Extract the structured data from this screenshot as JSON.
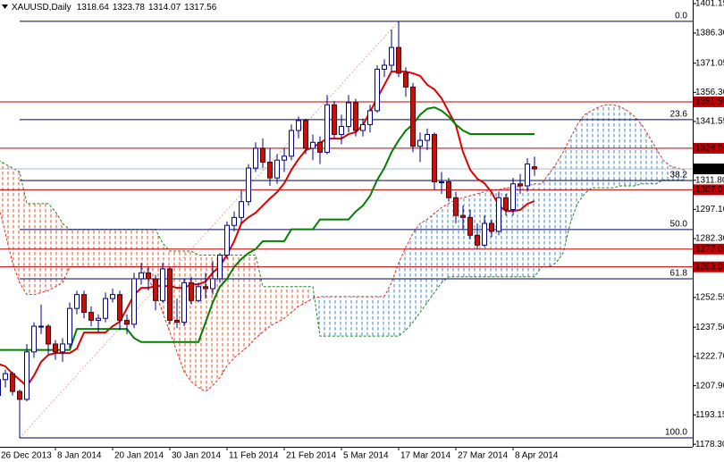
{
  "chart_data": {
    "type": "candlestick",
    "title": "XAUUSD,Daily",
    "categories": [
      "26 Dec 2013",
      null,
      null,
      null,
      null,
      null,
      null,
      null,
      "8 Jan 2014",
      null,
      null,
      null,
      null,
      null,
      null,
      null,
      "20 Jan 2014",
      null,
      null,
      null,
      null,
      null,
      null,
      null,
      "30 Jan 2014",
      null,
      null,
      null,
      null,
      null,
      null,
      null,
      "11 Feb 2014",
      null,
      null,
      null,
      null,
      null,
      null,
      null,
      "21 Feb 2014",
      null,
      null,
      null,
      null,
      null,
      null,
      null,
      "5 Mar 2014",
      null,
      null,
      null,
      null,
      null,
      null,
      null,
      "17 Mar 2014",
      null,
      null,
      null,
      null,
      null,
      null,
      null,
      "27 Mar 2014",
      null,
      null,
      null,
      null,
      null,
      null,
      null,
      "8 Apr 2014",
      null,
      null,
      null,
      null,
      null,
      null,
      null,
      null,
      null,
      null,
      null,
      null,
      null,
      null,
      null,
      null,
      null,
      null,
      null,
      null,
      null,
      null,
      null,
      null
    ],
    "open": [
      1203,
      1211,
      1214,
      1205,
      1201,
      1225,
      1238,
      1238,
      1229,
      1225,
      1229,
      1247,
      1254,
      1245,
      1241,
      1242,
      1252,
      1254,
      1241,
      1239,
      1262,
      1265,
      1262,
      1251,
      1267,
      1241,
      1240,
      1260,
      1251,
      1258,
      1257,
      1262,
      1274,
      1289,
      1293,
      1301,
      1318,
      1328,
      1321,
      1313,
      1322,
      1324,
      1337,
      1342,
      1328,
      1331,
      1326,
      1350,
      1335,
      1339,
      1351,
      1337,
      1340,
      1347,
      1368,
      1370,
      1379,
      1366,
      1359,
      1329,
      1332,
      1335,
      1311,
      1311,
      1303,
      1294,
      1293,
      1284,
      1279,
      1290,
      1286,
      1303,
      1297,
      1310,
      1309,
      1318.64,
      null,
      null,
      null,
      null,
      null,
      null,
      null,
      null,
      null,
      null,
      null,
      null,
      null,
      null,
      null,
      null,
      null,
      null,
      null,
      null,
      null
    ],
    "high": [
      1214,
      1216,
      1215,
      1206,
      1229,
      1240,
      1249,
      1239,
      1231,
      1232,
      1250,
      1256,
      1256,
      1248,
      1244,
      1255,
      1257,
      1256,
      1244,
      1265,
      1270,
      1268,
      1264,
      1270,
      1268,
      1252,
      1262,
      1263,
      1260,
      1265,
      1271,
      1275,
      1291,
      1296,
      1307,
      1320,
      1331,
      1333,
      1328,
      1325,
      1328,
      1340,
      1344,
      1343,
      1335,
      1334,
      1355,
      1352,
      1345,
      1355,
      1353,
      1343,
      1350,
      1370,
      1373,
      1388,
      1392.2,
      1369,
      1361,
      1336,
      1338,
      1336,
      1316,
      1313,
      1306,
      1299,
      1297,
      1290,
      1294,
      1292,
      1306,
      1305,
      1313,
      1315,
      1323,
      1323.78,
      null,
      null,
      null,
      null,
      null,
      null,
      null,
      null,
      null,
      null,
      null,
      null,
      null,
      null,
      null,
      null,
      null,
      null,
      null,
      null,
      null
    ],
    "low": [
      1201,
      1207,
      1203,
      1181.5,
      1200,
      1222,
      1234,
      1224,
      1221,
      1220,
      1227,
      1244,
      1242,
      1238,
      1235,
      1240,
      1250,
      1236,
      1234,
      1237,
      1259,
      1256,
      1246,
      1250,
      1239,
      1237,
      1238,
      1249,
      1250,
      1252,
      1254,
      1260,
      1272,
      1286,
      1290,
      1299,
      1316,
      1318,
      1309,
      1310,
      1316,
      1322,
      1333,
      1325,
      1322,
      1320,
      1325,
      1333,
      1330,
      1336,
      1334,
      1334,
      1336,
      1346,
      1364,
      1367,
      1364,
      1354,
      1326,
      1321,
      1327,
      1307,
      1305,
      1301,
      1290,
      1287,
      1282,
      1277,
      1278,
      1283,
      1284,
      1294,
      1294,
      1305,
      1306,
      1314.07,
      null,
      null,
      null,
      null,
      null,
      null,
      null,
      null,
      null,
      null,
      null,
      null,
      null,
      null,
      null,
      null,
      null,
      null,
      null,
      null,
      null
    ],
    "close": [
      1211,
      1214,
      1205,
      1201,
      1225,
      1238,
      1238,
      1229,
      1225,
      1229,
      1247,
      1254,
      1245,
      1241,
      1242,
      1252,
      1254,
      1241,
      1239,
      1262,
      1265,
      1262,
      1251,
      1267,
      1241,
      1240,
      1260,
      1251,
      1258,
      1257,
      1262,
      1274,
      1289,
      1293,
      1301,
      1318,
      1328,
      1321,
      1313,
      1322,
      1324,
      1337,
      1342,
      1328,
      1331,
      1326,
      1350,
      1335,
      1339,
      1351,
      1337,
      1340,
      1347,
      1368,
      1370,
      1379,
      1366,
      1359,
      1329,
      1332,
      1335,
      1311,
      1311,
      1303,
      1294,
      1293,
      1284,
      1279,
      1290,
      1286,
      1303,
      1297,
      1310,
      1309,
      1320,
      1317.56,
      null,
      null,
      null,
      null,
      null,
      null,
      null,
      null,
      null,
      null,
      null,
      null,
      null,
      null,
      null,
      null,
      null,
      null,
      null,
      null,
      null
    ],
    "up_color": "#ffffff",
    "down_color": "#c81010",
    "candle_edge": "#000080",
    "lines": [
      {
        "color": "#e00000",
        "values": [
          1219,
          1217.7,
          1214,
          1210.9,
          1207.7,
          1213,
          1220,
          1223.5,
          1224.4,
          1224.4,
          1224.4,
          1226.7,
          1234.8,
          1234.8,
          1234.8,
          1234.8,
          1238,
          1240.3,
          1247,
          1253.8,
          1257.4,
          1257.4,
          1258.3,
          1258.3,
          1258.3,
          1257.4,
          1257.4,
          1259.2,
          1259.2,
          1260.6,
          1265.1,
          1268.3,
          1274.2,
          1281,
          1290,
          1293.1,
          1295.4,
          1299,
          1302.6,
          1305.8,
          1310.3,
          1317.1,
          1322.5,
          1327,
          1328.4,
          1330.7,
          1332.9,
          1332.9,
          1332.9,
          1335.2,
          1336.1,
          1339.7,
          1346.5,
          1353.3,
          1360.1,
          1366.8,
          1366.8,
          1366.8,
          1365.9,
          1364.6,
          1360.1,
          1357.8,
          1353.3,
          1346.5,
          1339.7,
          1326.1,
          1317.1,
          1312.6,
          1310.3,
          1305.8,
          1299,
          1296.3,
          1296.3,
          1296.8,
          1299.9,
          1301.3,
          null,
          null,
          null,
          null,
          null,
          null,
          null,
          null,
          null,
          null,
          null,
          null,
          null,
          null,
          null,
          null,
          null,
          null,
          null,
          null,
          null
        ]
      },
      {
        "color": "#008000",
        "values": [
          1226,
          1226,
          1226,
          1226,
          1226,
          1226,
          1226,
          1226,
          1226,
          1226,
          1226,
          1236.6,
          1236.6,
          1236.6,
          1236.6,
          1236.6,
          1236.6,
          1236.6,
          1236.6,
          1232,
          1230,
          1230,
          1230,
          1230,
          1230,
          1230,
          1230,
          1230,
          1230,
          1240,
          1250,
          1258,
          1262,
          1268,
          1272,
          1275,
          1277,
          1281,
          1281,
          1281,
          1281,
          1287,
          1287,
          1287,
          1287,
          1292,
          1292,
          1292,
          1292,
          1292,
          1296,
          1299,
          1304,
          1312,
          1318,
          1326,
          1332,
          1337,
          1340,
          1345,
          1348,
          1348.7,
          1347,
          1344,
          1340,
          1337,
          1335.2,
          1335.2,
          1335.2,
          1335.2,
          1335.2,
          1335.2,
          1335.2,
          1335.2,
          1335.2,
          1335.2,
          null,
          null,
          null,
          null,
          null,
          null,
          null,
          null,
          null,
          null,
          null,
          null,
          null,
          null,
          null,
          null,
          null,
          null,
          null,
          null,
          null
        ]
      }
    ],
    "cloud": {
      "span_a": [
        1300,
        1285,
        1270,
        1260,
        1254,
        1254,
        1255,
        1256,
        1258,
        1260,
        1268,
        1268,
        1268,
        1268,
        1268,
        1268,
        1268,
        1268,
        1268,
        1268,
        1268,
        1262,
        1255,
        1245,
        1235,
        1225,
        1215,
        1210,
        1207,
        1205,
        1208,
        1212,
        1218,
        1222,
        1225,
        1228,
        1232,
        1235,
        1238,
        1240,
        1242,
        1245,
        1248,
        1250,
        1252,
        1253,
        1253,
        1253,
        1253,
        1253,
        1253,
        1253,
        1253,
        1253,
        1253,
        1260,
        1270,
        1278,
        1285,
        1290,
        1292,
        1295,
        1298,
        1300,
        1302,
        1303,
        1304,
        1305,
        1306,
        1307,
        1307,
        1308,
        1308,
        1309,
        1309,
        1310,
        1310,
        1315,
        1320,
        1326,
        1333,
        1340,
        1345,
        1347,
        1349,
        1350,
        1350,
        1349,
        1347,
        1344,
        1340,
        1334,
        1328,
        1322,
        1319,
        1318,
        1317
      ],
      "span_b": [
        1322,
        1320,
        1318,
        1316,
        1300,
        1300,
        1300,
        1300,
        1296,
        1290,
        1287,
        1287,
        1287,
        1287,
        1287,
        1287,
        1287,
        1287,
        1287,
        1287,
        1287,
        1287,
        1287,
        1280,
        1276,
        1276,
        1276,
        1276,
        1274,
        1274,
        1274,
        1274,
        1274,
        1274,
        1274,
        1274,
        1274,
        1258,
        1258,
        1258,
        1258,
        1258,
        1258,
        1258,
        1258,
        1233,
        1233,
        1233,
        1233,
        1233,
        1233,
        1233,
        1233,
        1233,
        1233,
        1233,
        1233,
        1236,
        1240,
        1245,
        1250,
        1255,
        1260,
        1263,
        1263,
        1263,
        1263,
        1263,
        1263,
        1263,
        1263,
        1263,
        1263,
        1263,
        1263,
        1263,
        1268,
        1268,
        1270,
        1275,
        1290,
        1300,
        1305,
        1308,
        1308,
        1308,
        1308,
        1309,
        1309,
        1309,
        1310,
        1310,
        1310,
        1312,
        1312,
        1312,
        1312
      ],
      "a_color": "#d83020",
      "b_color": "#1e8a1e",
      "up_fill": "#3f86c0",
      "down_fill": "#e0502a"
    },
    "levels": [
      {
        "value": 1351.5,
        "label": "1351.50"
      },
      {
        "value": 1328,
        "label": "1328.00"
      },
      {
        "value": 1307,
        "label": "1307.00"
      },
      {
        "value": 1277,
        "label": "1277.00"
      },
      {
        "value": 1268,
        "label": "1268.00"
      }
    ],
    "level_color": "#c00000",
    "fibonacci": [
      {
        "value": 1392.2,
        "label": "0.0"
      },
      {
        "value": 1342.5,
        "label": "23.6"
      },
      {
        "value": 1311.7,
        "label": "38.2"
      },
      {
        "value": 1286.9,
        "label": "50.0"
      },
      {
        "value": 1262.0,
        "label": "61.8"
      },
      {
        "value": 1181.5,
        "label": "100.0"
      }
    ],
    "fib_color": "#000060",
    "ylim": [
      1177,
      1403
    ],
    "yticks": [
      1401.15,
      {
        "value": 1386.3,
        "label": "1386.30"
      },
      1371.05,
      {
        "value": 1356.3,
        "label": "1356.30"
      },
      1341.55,
      {
        "value": 1311.8,
        "label": "1311.80"
      },
      {
        "value": 1297.1,
        "label": "1297.10"
      },
      {
        "value": 1282.3,
        "label": "1282.30"
      },
      1252.55,
      {
        "value": 1237.5,
        "label": "1237.50"
      },
      {
        "value": 1222.7,
        "label": "1222.70"
      },
      {
        "value": 1207.9,
        "label": "1207.90"
      },
      1193.15,
      {
        "value": 1178.3,
        "label": "1178.30"
      }
    ]
  }
}
